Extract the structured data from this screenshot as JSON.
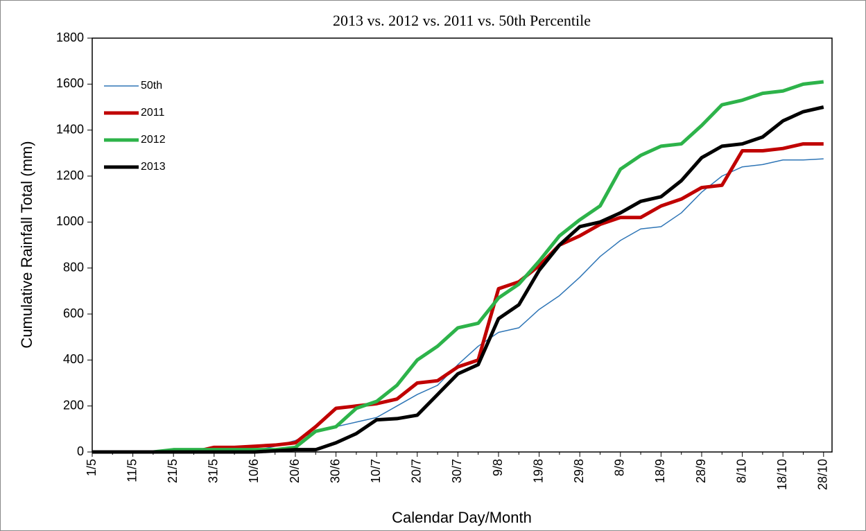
{
  "chart_data": {
    "type": "line",
    "title": "2013 vs. 2012 vs. 2011 vs. 50th Percentile",
    "x_label": "Calendar Day/Month",
    "y_label": "Cumulative Rainfall Total (mm)",
    "categories": [
      "1/5",
      null,
      "11/5",
      null,
      "21/5",
      null,
      "31/5",
      null,
      "10/6",
      null,
      "20/6",
      null,
      "30/6",
      null,
      "10/7",
      null,
      "20/7",
      null,
      "30/7",
      null,
      "9/8",
      null,
      "19/8",
      null,
      "29/8",
      null,
      "8/9",
      null,
      "18/9",
      null,
      "28/9",
      null,
      "8/10",
      null,
      "18/10",
      null,
      "28/10"
    ],
    "series": [
      {
        "name": "50th",
        "color": "#2e75b6",
        "values": [
          0,
          0,
          0,
          0,
          0,
          0,
          0,
          0,
          5,
          25,
          50,
          90,
          110,
          130,
          150,
          200,
          250,
          290,
          380,
          460,
          520,
          540,
          620,
          680,
          760,
          850,
          920,
          970,
          980,
          1040,
          1130,
          1200,
          1240,
          1250,
          1270,
          1270,
          1275
        ]
      },
      {
        "name": "2011",
        "color": "#c00000",
        "values": [
          0,
          0,
          0,
          0,
          0,
          0,
          20,
          20,
          25,
          30,
          40,
          110,
          190,
          200,
          210,
          230,
          300,
          310,
          370,
          400,
          710,
          740,
          810,
          900,
          940,
          990,
          1020,
          1020,
          1070,
          1100,
          1150,
          1160,
          1310,
          1310,
          1320,
          1340,
          1340
        ]
      },
      {
        "name": "2012",
        "color": "#2db34a",
        "values": [
          0,
          0,
          0,
          0,
          10,
          10,
          10,
          10,
          10,
          10,
          20,
          90,
          110,
          190,
          220,
          290,
          400,
          460,
          540,
          560,
          670,
          730,
          830,
          940,
          1010,
          1070,
          1230,
          1290,
          1330,
          1340,
          1420,
          1510,
          1530,
          1560,
          1570,
          1600,
          1610
        ]
      },
      {
        "name": "2013",
        "color": "#000000",
        "values": [
          0,
          0,
          0,
          0,
          0,
          0,
          0,
          0,
          0,
          5,
          10,
          10,
          40,
          80,
          140,
          145,
          160,
          250,
          340,
          380,
          580,
          640,
          790,
          900,
          980,
          1000,
          1040,
          1090,
          1110,
          1180,
          1280,
          1330,
          1340,
          1370,
          1440,
          1480,
          1500
        ]
      }
    ],
    "ylim": [
      0,
      1800
    ],
    "yticks": [
      0,
      200,
      400,
      600,
      800,
      1000,
      1200,
      1400,
      1600,
      1800
    ],
    "legend": "upper left"
  }
}
